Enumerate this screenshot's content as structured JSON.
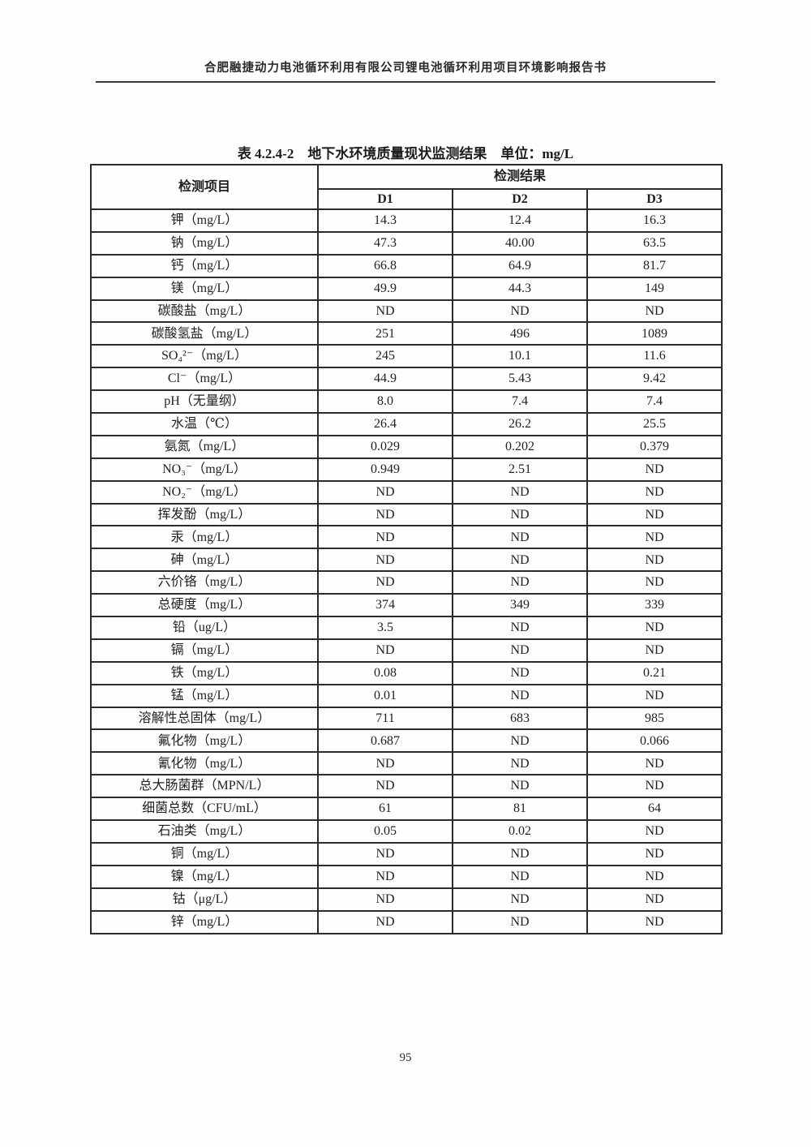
{
  "page": {
    "header": "合肥融捷动力电池循环利用有限公司锂电池循环利用项目环境影响报告书",
    "page_number": "95"
  },
  "table": {
    "title": "表 4.2.4-2　地下水环境质量现状监测结果　单位：mg/L",
    "param_header": "检测项目",
    "result_header": "检测结果",
    "columns": [
      "D1",
      "D2",
      "D3"
    ],
    "rows": [
      {
        "label": "钾（mg/L）",
        "values": [
          "14.3",
          "12.4",
          "16.3"
        ]
      },
      {
        "label": "钠（mg/L）",
        "values": [
          "47.3",
          "40.00",
          "63.5"
        ]
      },
      {
        "label": "钙（mg/L）",
        "values": [
          "66.8",
          "64.9",
          "81.7"
        ]
      },
      {
        "label": "镁（mg/L）",
        "values": [
          "49.9",
          "44.3",
          "149"
        ]
      },
      {
        "label": "碳酸盐（mg/L）",
        "values": [
          "ND",
          "ND",
          "ND"
        ]
      },
      {
        "label": "碳酸氢盐（mg/L）",
        "values": [
          "251",
          "496",
          "1089"
        ]
      },
      {
        "label": "SO₄²⁻（mg/L）",
        "values": [
          "245",
          "10.1",
          "11.6"
        ]
      },
      {
        "label": "Cl⁻（mg/L）",
        "values": [
          "44.9",
          "5.43",
          "9.42"
        ]
      },
      {
        "label": "pH（无量纲）",
        "values": [
          "8.0",
          "7.4",
          "7.4"
        ]
      },
      {
        "label": "水温（℃）",
        "values": [
          "26.4",
          "26.2",
          "25.5"
        ]
      },
      {
        "label": "氨氮（mg/L）",
        "values": [
          "0.029",
          "0.202",
          "0.379"
        ]
      },
      {
        "label": "NO₃⁻（mg/L）",
        "values": [
          "0.949",
          "2.51",
          "ND"
        ]
      },
      {
        "label": "NO₂⁻（mg/L）",
        "values": [
          "ND",
          "ND",
          "ND"
        ]
      },
      {
        "label": "挥发酚（mg/L）",
        "values": [
          "ND",
          "ND",
          "ND"
        ]
      },
      {
        "label": "汞（mg/L）",
        "values": [
          "ND",
          "ND",
          "ND"
        ]
      },
      {
        "label": "砷（mg/L）",
        "values": [
          "ND",
          "ND",
          "ND"
        ]
      },
      {
        "label": "六价铬（mg/L）",
        "values": [
          "ND",
          "ND",
          "ND"
        ]
      },
      {
        "label": "总硬度（mg/L）",
        "values": [
          "374",
          "349",
          "339"
        ]
      },
      {
        "label": "铅（ug/L）",
        "values": [
          "3.5",
          "ND",
          "ND"
        ]
      },
      {
        "label": "镉（mg/L）",
        "values": [
          "ND",
          "ND",
          "ND"
        ]
      },
      {
        "label": "铁（mg/L）",
        "values": [
          "0.08",
          "ND",
          "0.21"
        ]
      },
      {
        "label": "锰（mg/L）",
        "values": [
          "0.01",
          "ND",
          "ND"
        ]
      },
      {
        "label": "溶解性总固体（mg/L）",
        "values": [
          "711",
          "683",
          "985"
        ]
      },
      {
        "label": "氟化物（mg/L）",
        "values": [
          "0.687",
          "ND",
          "0.066"
        ]
      },
      {
        "label": "氰化物（mg/L）",
        "values": [
          "ND",
          "ND",
          "ND"
        ]
      },
      {
        "label": "总大肠菌群（MPN/L）",
        "values": [
          "ND",
          "ND",
          "ND"
        ]
      },
      {
        "label": "细菌总数（CFU/mL）",
        "values": [
          "61",
          "81",
          "64"
        ]
      },
      {
        "label": "石油类（mg/L）",
        "values": [
          "0.05",
          "0.02",
          "ND"
        ]
      },
      {
        "label": "铜（mg/L）",
        "values": [
          "ND",
          "ND",
          "ND"
        ]
      },
      {
        "label": "镍（mg/L）",
        "values": [
          "ND",
          "ND",
          "ND"
        ]
      },
      {
        "label": "钴（μg/L）",
        "values": [
          "ND",
          "ND",
          "ND"
        ]
      },
      {
        "label": "锌（mg/L）",
        "values": [
          "ND",
          "ND",
          "ND"
        ]
      }
    ]
  }
}
